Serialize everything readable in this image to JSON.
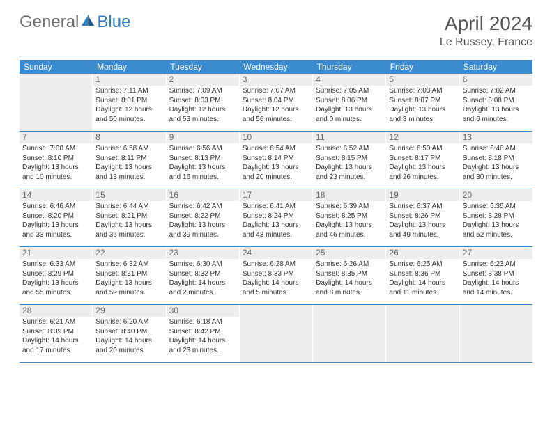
{
  "logo": {
    "text_general": "General",
    "text_blue": "Blue"
  },
  "header": {
    "month": "April 2024",
    "location": "Le Russey, France"
  },
  "calendar": {
    "weekdays": [
      "Sunday",
      "Monday",
      "Tuesday",
      "Wednesday",
      "Thursday",
      "Friday",
      "Saturday"
    ],
    "colors": {
      "header_bg": "#3b8bd0",
      "header_fg": "#ffffff",
      "empty_bg": "#ededed",
      "daynum_bg": "#ededed",
      "daynum_fg": "#6b6b6b",
      "border": "#3b8bd0",
      "text": "#333333"
    },
    "weeks": [
      [
        {
          "empty": true
        },
        {
          "num": "1",
          "sunrise": "Sunrise: 7:11 AM",
          "sunset": "Sunset: 8:01 PM",
          "day1": "Daylight: 12 hours",
          "day2": "and 50 minutes."
        },
        {
          "num": "2",
          "sunrise": "Sunrise: 7:09 AM",
          "sunset": "Sunset: 8:03 PM",
          "day1": "Daylight: 12 hours",
          "day2": "and 53 minutes."
        },
        {
          "num": "3",
          "sunrise": "Sunrise: 7:07 AM",
          "sunset": "Sunset: 8:04 PM",
          "day1": "Daylight: 12 hours",
          "day2": "and 56 minutes."
        },
        {
          "num": "4",
          "sunrise": "Sunrise: 7:05 AM",
          "sunset": "Sunset: 8:06 PM",
          "day1": "Daylight: 13 hours",
          "day2": "and 0 minutes."
        },
        {
          "num": "5",
          "sunrise": "Sunrise: 7:03 AM",
          "sunset": "Sunset: 8:07 PM",
          "day1": "Daylight: 13 hours",
          "day2": "and 3 minutes."
        },
        {
          "num": "6",
          "sunrise": "Sunrise: 7:02 AM",
          "sunset": "Sunset: 8:08 PM",
          "day1": "Daylight: 13 hours",
          "day2": "and 6 minutes."
        }
      ],
      [
        {
          "num": "7",
          "sunrise": "Sunrise: 7:00 AM",
          "sunset": "Sunset: 8:10 PM",
          "day1": "Daylight: 13 hours",
          "day2": "and 10 minutes."
        },
        {
          "num": "8",
          "sunrise": "Sunrise: 6:58 AM",
          "sunset": "Sunset: 8:11 PM",
          "day1": "Daylight: 13 hours",
          "day2": "and 13 minutes."
        },
        {
          "num": "9",
          "sunrise": "Sunrise: 6:56 AM",
          "sunset": "Sunset: 8:13 PM",
          "day1": "Daylight: 13 hours",
          "day2": "and 16 minutes."
        },
        {
          "num": "10",
          "sunrise": "Sunrise: 6:54 AM",
          "sunset": "Sunset: 8:14 PM",
          "day1": "Daylight: 13 hours",
          "day2": "and 20 minutes."
        },
        {
          "num": "11",
          "sunrise": "Sunrise: 6:52 AM",
          "sunset": "Sunset: 8:15 PM",
          "day1": "Daylight: 13 hours",
          "day2": "and 23 minutes."
        },
        {
          "num": "12",
          "sunrise": "Sunrise: 6:50 AM",
          "sunset": "Sunset: 8:17 PM",
          "day1": "Daylight: 13 hours",
          "day2": "and 26 minutes."
        },
        {
          "num": "13",
          "sunrise": "Sunrise: 6:48 AM",
          "sunset": "Sunset: 8:18 PM",
          "day1": "Daylight: 13 hours",
          "day2": "and 30 minutes."
        }
      ],
      [
        {
          "num": "14",
          "sunrise": "Sunrise: 6:46 AM",
          "sunset": "Sunset: 8:20 PM",
          "day1": "Daylight: 13 hours",
          "day2": "and 33 minutes."
        },
        {
          "num": "15",
          "sunrise": "Sunrise: 6:44 AM",
          "sunset": "Sunset: 8:21 PM",
          "day1": "Daylight: 13 hours",
          "day2": "and 36 minutes."
        },
        {
          "num": "16",
          "sunrise": "Sunrise: 6:42 AM",
          "sunset": "Sunset: 8:22 PM",
          "day1": "Daylight: 13 hours",
          "day2": "and 39 minutes."
        },
        {
          "num": "17",
          "sunrise": "Sunrise: 6:41 AM",
          "sunset": "Sunset: 8:24 PM",
          "day1": "Daylight: 13 hours",
          "day2": "and 43 minutes."
        },
        {
          "num": "18",
          "sunrise": "Sunrise: 6:39 AM",
          "sunset": "Sunset: 8:25 PM",
          "day1": "Daylight: 13 hours",
          "day2": "and 46 minutes."
        },
        {
          "num": "19",
          "sunrise": "Sunrise: 6:37 AM",
          "sunset": "Sunset: 8:26 PM",
          "day1": "Daylight: 13 hours",
          "day2": "and 49 minutes."
        },
        {
          "num": "20",
          "sunrise": "Sunrise: 6:35 AM",
          "sunset": "Sunset: 8:28 PM",
          "day1": "Daylight: 13 hours",
          "day2": "and 52 minutes."
        }
      ],
      [
        {
          "num": "21",
          "sunrise": "Sunrise: 6:33 AM",
          "sunset": "Sunset: 8:29 PM",
          "day1": "Daylight: 13 hours",
          "day2": "and 55 minutes."
        },
        {
          "num": "22",
          "sunrise": "Sunrise: 6:32 AM",
          "sunset": "Sunset: 8:31 PM",
          "day1": "Daylight: 13 hours",
          "day2": "and 59 minutes."
        },
        {
          "num": "23",
          "sunrise": "Sunrise: 6:30 AM",
          "sunset": "Sunset: 8:32 PM",
          "day1": "Daylight: 14 hours",
          "day2": "and 2 minutes."
        },
        {
          "num": "24",
          "sunrise": "Sunrise: 6:28 AM",
          "sunset": "Sunset: 8:33 PM",
          "day1": "Daylight: 14 hours",
          "day2": "and 5 minutes."
        },
        {
          "num": "25",
          "sunrise": "Sunrise: 6:26 AM",
          "sunset": "Sunset: 8:35 PM",
          "day1": "Daylight: 14 hours",
          "day2": "and 8 minutes."
        },
        {
          "num": "26",
          "sunrise": "Sunrise: 6:25 AM",
          "sunset": "Sunset: 8:36 PM",
          "day1": "Daylight: 14 hours",
          "day2": "and 11 minutes."
        },
        {
          "num": "27",
          "sunrise": "Sunrise: 6:23 AM",
          "sunset": "Sunset: 8:38 PM",
          "day1": "Daylight: 14 hours",
          "day2": "and 14 minutes."
        }
      ],
      [
        {
          "num": "28",
          "sunrise": "Sunrise: 6:21 AM",
          "sunset": "Sunset: 8:39 PM",
          "day1": "Daylight: 14 hours",
          "day2": "and 17 minutes."
        },
        {
          "num": "29",
          "sunrise": "Sunrise: 6:20 AM",
          "sunset": "Sunset: 8:40 PM",
          "day1": "Daylight: 14 hours",
          "day2": "and 20 minutes."
        },
        {
          "num": "30",
          "sunrise": "Sunrise: 6:18 AM",
          "sunset": "Sunset: 8:42 PM",
          "day1": "Daylight: 14 hours",
          "day2": "and 23 minutes."
        },
        {
          "empty": true
        },
        {
          "empty": true
        },
        {
          "empty": true
        },
        {
          "empty": true
        }
      ]
    ]
  }
}
